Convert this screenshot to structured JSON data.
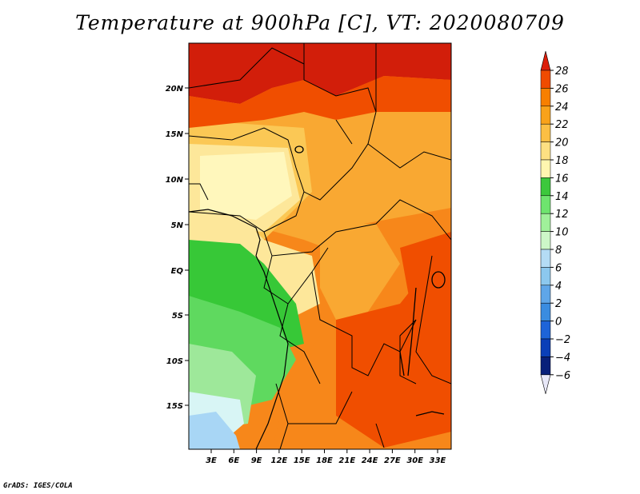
{
  "title": "Temperature at 900hPa [C], VT: 2020080709",
  "footer": "GrADS: IGES/COLA",
  "lat_labels": [
    "20N",
    "15N",
    "10N",
    "5N",
    "EQ",
    "5S",
    "10S",
    "15S"
  ],
  "lon_labels": [
    "3E",
    "6E",
    "9E",
    "12E",
    "15E",
    "18E",
    "21E",
    "24E",
    "27E",
    "30E",
    "33E"
  ],
  "colorbar": {
    "levels": [
      "28",
      "26",
      "24",
      "22",
      "20",
      "18",
      "16",
      "14",
      "12",
      "10",
      "8",
      "6",
      "4",
      "2",
      "0",
      "−2",
      "−4",
      "−6"
    ],
    "colors": [
      "#e61e00",
      "#f04b00",
      "#f77f00",
      "#f9a21a",
      "#fbbf44",
      "#fde082",
      "#fff6b0",
      "#3cc83c",
      "#6ee46e",
      "#a0f09a",
      "#cdf7c8",
      "#b4dcf5",
      "#8cc8ee",
      "#5fa6e8",
      "#3a8ce0",
      "#1e64d8",
      "#0a3fb8",
      "#08207a",
      "#000060",
      "#e6e6f5"
    ],
    "top_color": "#dc1e0a",
    "bottom_color": "#e8e8f8"
  },
  "map_colors": {
    "sahara": "#d21e0a",
    "hot": "#f04e00",
    "warm": "#f7871a",
    "mid": "#f9a832",
    "mild": "#fbc855",
    "pale": "#fde79a",
    "cream": "#fff7bc",
    "green_dark": "#37c837",
    "green_mid": "#5fd95f",
    "green_light": "#9ee89a",
    "cyan_light": "#d8f5f5",
    "blue_light": "#a8d6f5"
  }
}
